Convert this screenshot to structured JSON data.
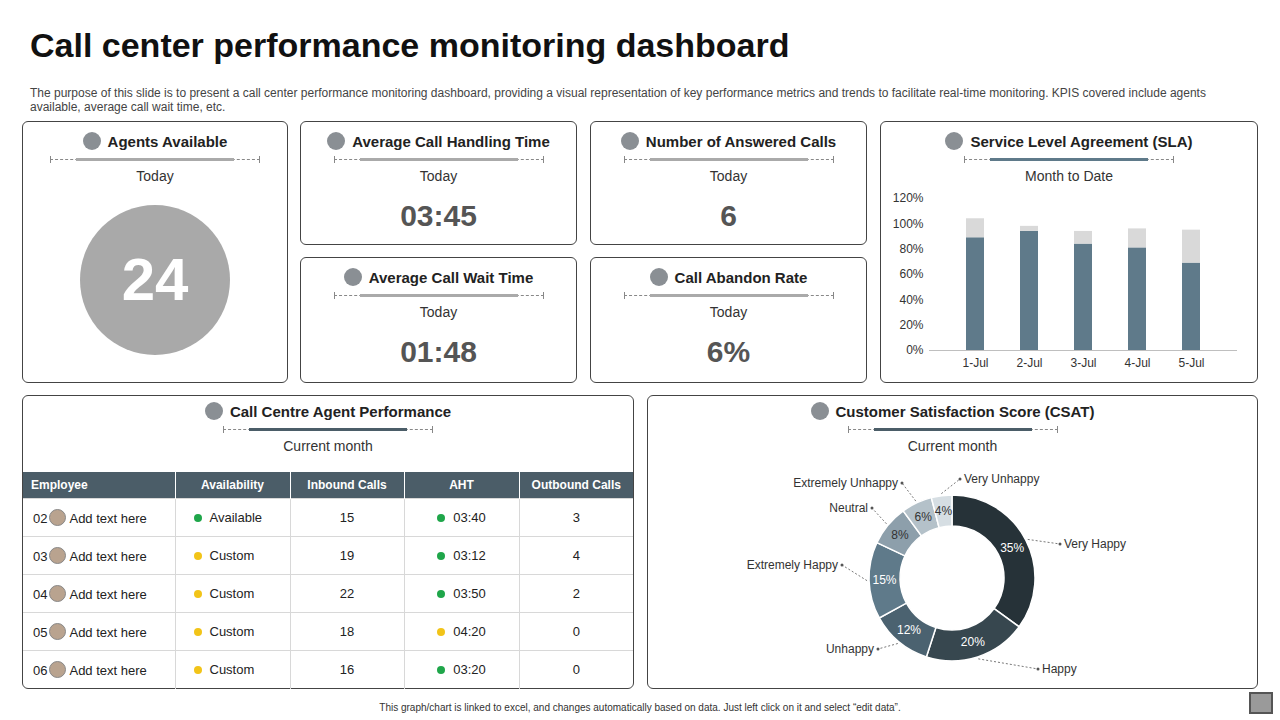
{
  "title": "Call center performance monitoring dashboard",
  "subtitle": "The purpose of this slide is to present a call center performance monitoring dashboard, providing a visual representation of key performance metrics and trends to facilitate real-time monitoring. KPIS covered include agents available, average call wait time, etc.",
  "kpis": [
    {
      "title": "Agents Available",
      "period": "Today",
      "value": 24
    },
    {
      "title": "Average Call Handling Time",
      "period": "Today",
      "value": "03:45"
    },
    {
      "title": "Number of Answered Calls",
      "period": "Today",
      "value": 6
    },
    {
      "title": "Average Call Wait Time",
      "period": "Today",
      "value": "01:48"
    },
    {
      "title": "Call Abandon Rate",
      "period": "Today",
      "value": "6%"
    }
  ],
  "agent_table": {
    "title": "Call Centre Agent Performance",
    "period": "Current month",
    "columns": [
      "Employee",
      "Availability",
      "Inbound Calls",
      "AHT",
      "Outbound Calls"
    ],
    "rows": [
      {
        "id": "02",
        "employee": "Add text here",
        "availability": "Available",
        "availability_color": "#1fa64a",
        "inbound": 15,
        "aht": "03:40",
        "aht_color": "#1fa64a",
        "outbound": 3
      },
      {
        "id": "03",
        "employee": "Add text here",
        "availability": "Custom",
        "availability_color": "#f2c418",
        "inbound": 19,
        "aht": "03:12",
        "aht_color": "#1fa64a",
        "outbound": 4
      },
      {
        "id": "04",
        "employee": "Add text here",
        "availability": "Custom",
        "availability_color": "#f2c418",
        "inbound": 22,
        "aht": "03:50",
        "aht_color": "#1fa64a",
        "outbound": 2
      },
      {
        "id": "05",
        "employee": "Add text here",
        "availability": "Custom",
        "availability_color": "#f2c418",
        "inbound": 18,
        "aht": "04:20",
        "aht_color": "#f2c418",
        "outbound": 0
      },
      {
        "id": "06",
        "employee": "Add text here",
        "availability": "Custom",
        "availability_color": "#f2c418",
        "inbound": 16,
        "aht": "03:20",
        "aht_color": "#1fa64a",
        "outbound": 0
      }
    ]
  },
  "chart_data": [
    {
      "type": "bar",
      "title": "Service Level Agreement (SLA)",
      "subtitle": "Month to Date",
      "categories": [
        "1-Jul",
        "2-Jul",
        "3-Jul",
        "4-Jul",
        "5-Jul"
      ],
      "series": [
        {
          "color": "#5f7a8a",
          "values": [
            89,
            94,
            84,
            81,
            69
          ]
        },
        {
          "color": "#d9d9d9",
          "values": [
            15,
            4,
            10,
            15,
            26
          ]
        }
      ],
      "stacked": true,
      "ylim": [
        0,
        120
      ],
      "yticks": [
        {
          "value": 0,
          "label": "0%"
        },
        {
          "value": 20,
          "label": "20%"
        },
        {
          "value": 40,
          "label": "40%"
        },
        {
          "value": 60,
          "label": "60%"
        },
        {
          "value": 80,
          "label": "80%"
        },
        {
          "value": 100,
          "label": "100%"
        },
        {
          "value": 120,
          "label": "120%"
        }
      ]
    },
    {
      "type": "donut",
      "title": "Customer Satisfaction Score (CSAT)",
      "subtitle": "Current month",
      "categories": [
        "Very Happy",
        "Happy",
        "Unhappy",
        "Extremely Happy",
        "Neutral",
        "Extremely Unhappy",
        "Very Unhappy"
      ],
      "values": [
        35,
        20,
        12,
        15,
        8,
        6,
        4
      ],
      "value_labels": [
        "35%",
        "20%",
        "12%",
        "15%",
        "8%",
        "6%",
        "4%"
      ],
      "colors": [
        "#263238",
        "#37474f",
        "#4b6270",
        "#5f7a8a",
        "#8d9fab",
        "#b4c1c9",
        "#d6dee3"
      ],
      "data_labels": true
    }
  ],
  "footer": "This graph/chart is linked to excel, and changes automatically based on data. Just left click on it and select “edit data”."
}
